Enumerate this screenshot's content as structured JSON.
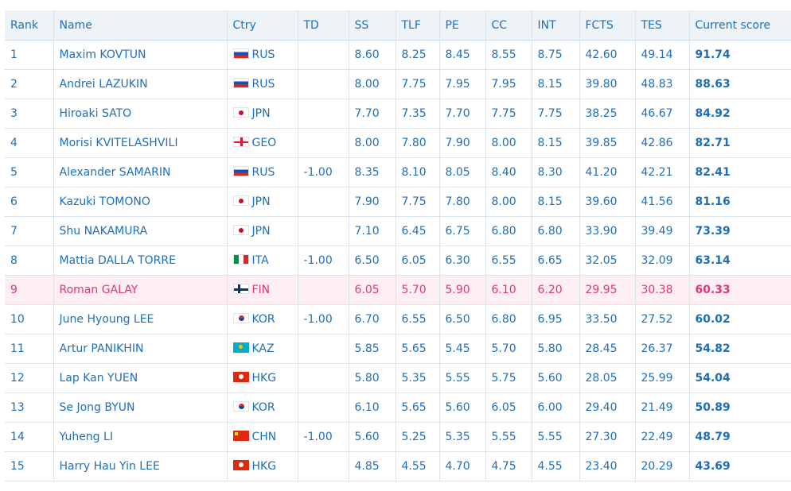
{
  "headers": [
    "Rank",
    "Name",
    "Ctry",
    "TD",
    "SS",
    "TLF",
    "PE",
    "CC",
    "INT",
    "FCTS",
    "TES",
    "Current score"
  ],
  "rows": [
    {
      "rank": "1",
      "name": "Maxim KOVTUN",
      "ctry": "RUS",
      "flag": "rus",
      "td": "",
      "ss": "8.60",
      "tlf": "8.25",
      "pe": "8.45",
      "cc": "8.55",
      "int": "8.75",
      "fcts": "42.60",
      "tes": "49.14",
      "score": "91.74"
    },
    {
      "rank": "2",
      "name": "Andrei LAZUKIN",
      "ctry": "RUS",
      "flag": "rus",
      "td": "",
      "ss": "8.00",
      "tlf": "7.75",
      "pe": "7.95",
      "cc": "7.95",
      "int": "8.15",
      "fcts": "39.80",
      "tes": "48.83",
      "score": "88.63"
    },
    {
      "rank": "3",
      "name": "Hiroaki SATO",
      "ctry": "JPN",
      "flag": "jpn",
      "td": "",
      "ss": "7.70",
      "tlf": "7.35",
      "pe": "7.70",
      "cc": "7.75",
      "int": "7.75",
      "fcts": "38.25",
      "tes": "46.67",
      "score": "84.92"
    },
    {
      "rank": "4",
      "name": "Morisi KVITELASHVILI",
      "ctry": "GEO",
      "flag": "geo",
      "td": "",
      "ss": "8.00",
      "tlf": "7.80",
      "pe": "7.90",
      "cc": "8.00",
      "int": "8.15",
      "fcts": "39.85",
      "tes": "42.86",
      "score": "82.71"
    },
    {
      "rank": "5",
      "name": "Alexander SAMARIN",
      "ctry": "RUS",
      "flag": "rus",
      "td": "-1.00",
      "ss": "8.35",
      "tlf": "8.10",
      "pe": "8.05",
      "cc": "8.40",
      "int": "8.30",
      "fcts": "41.20",
      "tes": "42.21",
      "score": "82.41"
    },
    {
      "rank": "6",
      "name": "Kazuki TOMONO",
      "ctry": "JPN",
      "flag": "jpn",
      "td": "",
      "ss": "7.90",
      "tlf": "7.75",
      "pe": "7.80",
      "cc": "8.00",
      "int": "8.15",
      "fcts": "39.60",
      "tes": "41.56",
      "score": "81.16"
    },
    {
      "rank": "7",
      "name": "Shu NAKAMURA",
      "ctry": "JPN",
      "flag": "jpn",
      "td": "",
      "ss": "7.10",
      "tlf": "6.45",
      "pe": "6.75",
      "cc": "6.80",
      "int": "6.80",
      "fcts": "33.90",
      "tes": "39.49",
      "score": "73.39"
    },
    {
      "rank": "8",
      "name": "Mattia DALLA TORRE",
      "ctry": "ITA",
      "flag": "ita",
      "td": "-1.00",
      "ss": "6.50",
      "tlf": "6.05",
      "pe": "6.30",
      "cc": "6.55",
      "int": "6.65",
      "fcts": "32.05",
      "tes": "32.09",
      "score": "63.14"
    },
    {
      "rank": "9",
      "name": "Roman GALAY",
      "ctry": "FIN",
      "flag": "fin",
      "td": "",
      "ss": "6.05",
      "tlf": "5.70",
      "pe": "5.90",
      "cc": "6.10",
      "int": "6.20",
      "fcts": "29.95",
      "tes": "30.38",
      "score": "60.33",
      "highlight": true
    },
    {
      "rank": "10",
      "name": "June Hyoung LEE",
      "ctry": "KOR",
      "flag": "kor",
      "td": "-1.00",
      "ss": "6.70",
      "tlf": "6.55",
      "pe": "6.50",
      "cc": "6.80",
      "int": "6.95",
      "fcts": "33.50",
      "tes": "27.52",
      "score": "60.02"
    },
    {
      "rank": "11",
      "name": "Artur PANIKHIN",
      "ctry": "KAZ",
      "flag": "kaz",
      "td": "",
      "ss": "5.85",
      "tlf": "5.65",
      "pe": "5.45",
      "cc": "5.70",
      "int": "5.80",
      "fcts": "28.45",
      "tes": "26.37",
      "score": "54.82"
    },
    {
      "rank": "12",
      "name": "Lap Kan YUEN",
      "ctry": "HKG",
      "flag": "hkg",
      "td": "",
      "ss": "5.80",
      "tlf": "5.35",
      "pe": "5.55",
      "cc": "5.75",
      "int": "5.60",
      "fcts": "28.05",
      "tes": "25.99",
      "score": "54.04"
    },
    {
      "rank": "13",
      "name": "Se Jong BYUN",
      "ctry": "KOR",
      "flag": "kor",
      "td": "",
      "ss": "6.10",
      "tlf": "5.65",
      "pe": "5.60",
      "cc": "6.05",
      "int": "6.00",
      "fcts": "29.40",
      "tes": "21.49",
      "score": "50.89"
    },
    {
      "rank": "14",
      "name": "Yuheng LI",
      "ctry": "CHN",
      "flag": "chn",
      "td": "-1.00",
      "ss": "5.60",
      "tlf": "5.25",
      "pe": "5.35",
      "cc": "5.55",
      "int": "5.55",
      "fcts": "27.30",
      "tes": "22.49",
      "score": "48.79"
    },
    {
      "rank": "15",
      "name": "Harry Hau Yin LEE",
      "ctry": "HKG",
      "flag": "hkg",
      "td": "",
      "ss": "4.85",
      "tlf": "4.55",
      "pe": "4.70",
      "cc": "4.75",
      "int": "4.55",
      "fcts": "23.40",
      "tes": "20.29",
      "score": "43.69"
    }
  ],
  "colors": {
    "link": "#1f6fb8",
    "highlight_text": "#e0367a",
    "highlight_bg": "#fdeef4",
    "header_bg": "#eef3f8",
    "border": "#dde3ea"
  }
}
